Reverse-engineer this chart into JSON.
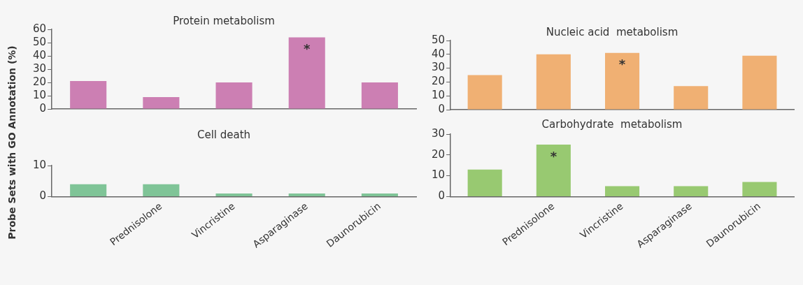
{
  "chart_data": [
    {
      "type": "bar",
      "title": "Protein metabolism",
      "ylabel": "Probe Sets with GO Annotation (%)",
      "categories": [
        null,
        "Prednisolone",
        "Vincristine",
        "Asparaginase",
        "Daunorubicin"
      ],
      "values": [
        21,
        9,
        20,
        54,
        20
      ],
      "color": "#cc7fb3",
      "ylim": [
        0,
        60
      ],
      "yticks": [
        0,
        10,
        20,
        30,
        40,
        50,
        60
      ],
      "tick_labels": "y",
      "grid": false,
      "legend": false,
      "annotations": [
        {
          "text": "*",
          "x": "Asparaginase",
          "y": 54
        }
      ]
    },
    {
      "type": "bar",
      "title": "Nucleic acid  metabolism",
      "categories": [
        null,
        "Prednisolone",
        "Vincristine",
        "Asparaginase",
        "Daunorubicin"
      ],
      "values": [
        25,
        40,
        41,
        17,
        39
      ],
      "color": "#f0b073",
      "ylim": [
        0,
        50
      ],
      "yticks": [
        0,
        10,
        20,
        30,
        40,
        50
      ],
      "tick_labels": "y",
      "grid": false,
      "legend": false,
      "annotations": [
        {
          "text": "*",
          "x": "Vincristine",
          "y": 41
        }
      ]
    },
    {
      "type": "bar",
      "title": "Cell death",
      "categories": [
        null,
        "Prednisolone",
        "Vincristine",
        "Asparaginase",
        "Daunorubicin"
      ],
      "values": [
        4,
        4,
        1,
        1,
        1
      ],
      "color": "#7fc497",
      "ylim": [
        0,
        10
      ],
      "yticks": [
        0,
        10
      ],
      "grid": false,
      "legend": false
    },
    {
      "type": "bar",
      "title": "Carbohydrate  metabolism",
      "categories": [
        null,
        "Prednisolone",
        "Vincristine",
        "Asparaginase",
        "Daunorubicin"
      ],
      "values": [
        13,
        25,
        5,
        5,
        7
      ],
      "color": "#98c971",
      "ylim": [
        0,
        30
      ],
      "yticks": [
        0,
        10,
        20,
        30
      ],
      "grid": false,
      "legend": false,
      "annotations": [
        {
          "text": "*",
          "x": "Prednisolone",
          "y": 25
        }
      ]
    }
  ]
}
